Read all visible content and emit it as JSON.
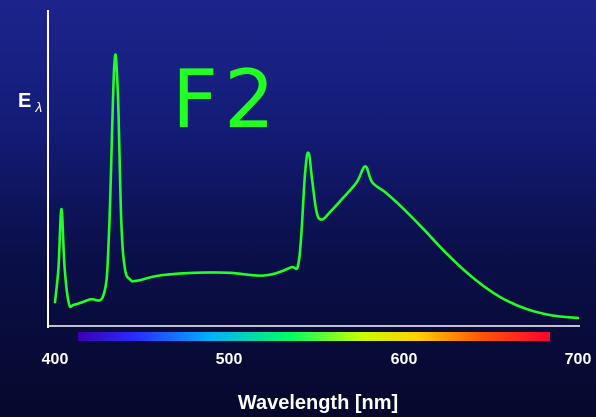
{
  "chart_data": {
    "type": "line",
    "title": "F2",
    "ylabel": "E",
    "ylabel_subscript": "λ",
    "xlabel": "Wavelength [nm]",
    "xlim": [
      400,
      700
    ],
    "xticks": [
      "400",
      "500",
      "600",
      "700"
    ],
    "grid": false,
    "colors": {
      "line": "#22ff22",
      "axis": "#ffffff"
    },
    "series": [
      {
        "values": [
          [
            400,
            0.09
          ],
          [
            402,
            0.22
          ],
          [
            403.7,
            0.44
          ],
          [
            405.5,
            0.22
          ],
          [
            408,
            0.085
          ],
          [
            411,
            0.08
          ],
          [
            420,
            0.1
          ],
          [
            428,
            0.12
          ],
          [
            431,
            0.35
          ],
          [
            434,
            0.98
          ],
          [
            436,
            0.88
          ],
          [
            438,
            0.4
          ],
          [
            440,
            0.22
          ],
          [
            443,
            0.175
          ],
          [
            447,
            0.17
          ],
          [
            460,
            0.19
          ],
          [
            480,
            0.2
          ],
          [
            500,
            0.2
          ],
          [
            520,
            0.19
          ],
          [
            535,
            0.22
          ],
          [
            540,
            0.25
          ],
          [
            543.5,
            0.58
          ],
          [
            545.5,
            0.65
          ],
          [
            547.5,
            0.55
          ],
          [
            550,
            0.43
          ],
          [
            553,
            0.4
          ],
          [
            558,
            0.43
          ],
          [
            565,
            0.48
          ],
          [
            573,
            0.54
          ],
          [
            578,
            0.6
          ],
          [
            582,
            0.54
          ],
          [
            590,
            0.5
          ],
          [
            600,
            0.44
          ],
          [
            612,
            0.36
          ],
          [
            625,
            0.27
          ],
          [
            640,
            0.18
          ],
          [
            655,
            0.11
          ],
          [
            670,
            0.065
          ],
          [
            685,
            0.04
          ],
          [
            700,
            0.03
          ]
        ]
      }
    ]
  }
}
